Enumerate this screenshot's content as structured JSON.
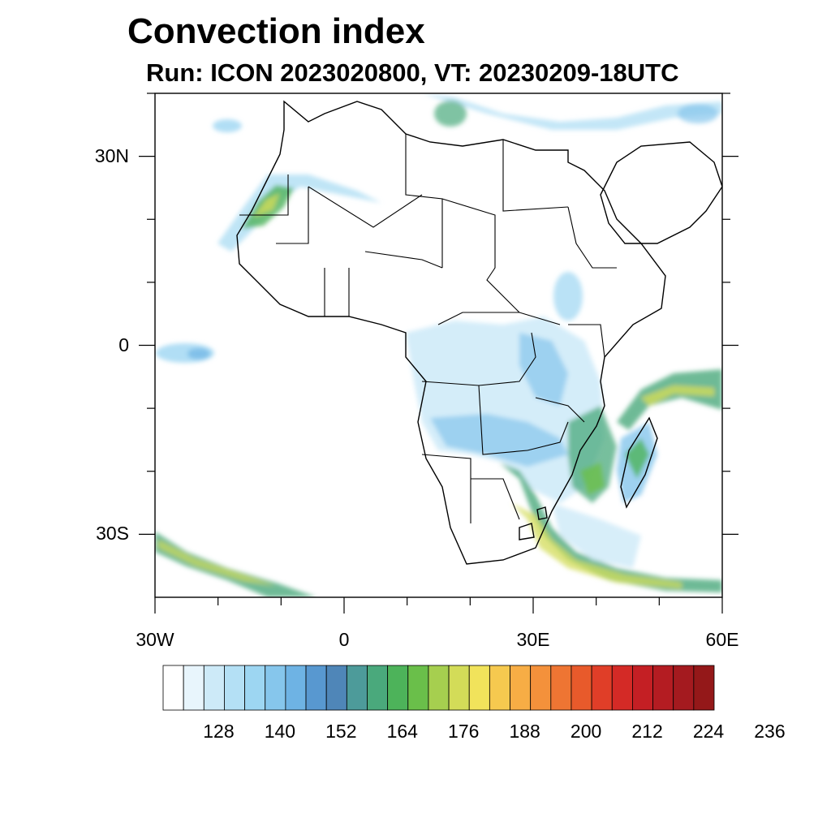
{
  "title": "Convection index",
  "subtitle": "Run: ICON 2023020800,  VT: 20230209-18UTC",
  "map": {
    "extent": {
      "lon": [
        -30,
        60
      ],
      "lat": [
        -40,
        40
      ]
    },
    "lat_ticks": [
      {
        "lat": 30,
        "label": "30N"
      },
      {
        "lat": 0,
        "label": "0"
      },
      {
        "lat": -30,
        "label": "30S"
      }
    ],
    "lon_ticks": [
      {
        "lon": -30,
        "label": "30W"
      },
      {
        "lon": 0,
        "label": "0"
      },
      {
        "lon": 30,
        "label": "30E"
      },
      {
        "lon": 60,
        "label": "60E"
      }
    ]
  },
  "colorbar": {
    "colors": [
      "#ffffff",
      "#e8f5fc",
      "#cdeaf8",
      "#b4e0f5",
      "#9dd6f2",
      "#86c6ec",
      "#6eb3e4",
      "#5898d0",
      "#4f86b8",
      "#4d9b9a",
      "#4aa97c",
      "#4db35a",
      "#6abf4a",
      "#a6cf4f",
      "#d3dc58",
      "#f1e35b",
      "#f6c94f",
      "#f7ad45",
      "#f4913b",
      "#ee7533",
      "#e85a2b",
      "#e03e28",
      "#d42a26",
      "#c41f24",
      "#b41c22",
      "#a41a1f",
      "#941819"
    ],
    "labels": [
      "128",
      "140",
      "152",
      "164",
      "176",
      "188",
      "200",
      "212",
      "224",
      "236"
    ]
  },
  "icon_names": [
    "convection-blob",
    "coastline",
    "country-border"
  ]
}
